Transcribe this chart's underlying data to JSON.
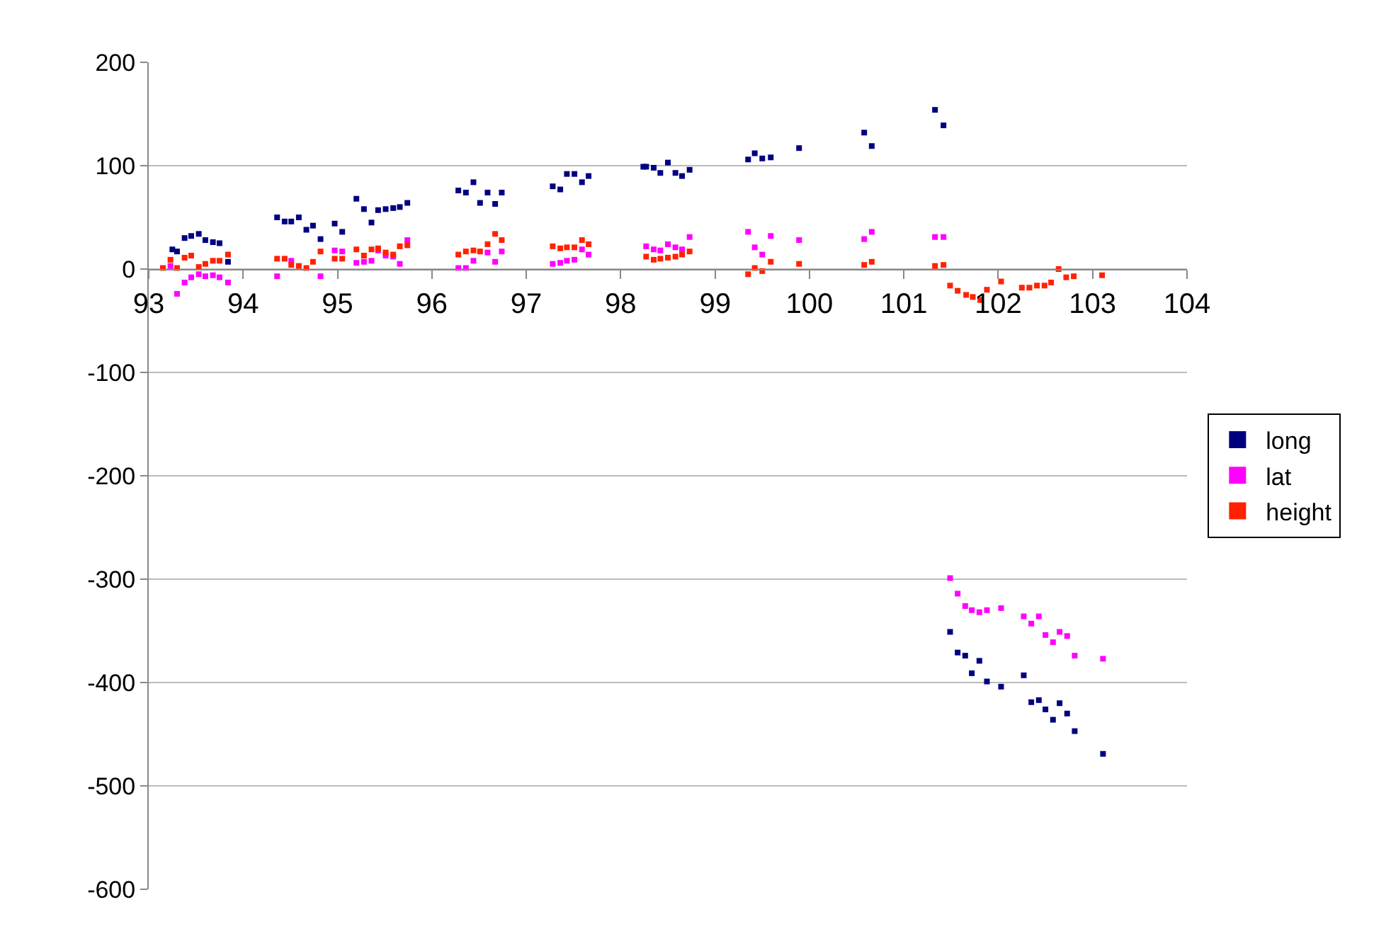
{
  "chart_data": {
    "type": "scatter",
    "xlim": [
      93,
      104
    ],
    "xticks": [
      93,
      94,
      95,
      96,
      97,
      98,
      99,
      100,
      101,
      102,
      103,
      104
    ],
    "ylim": [
      -600,
      200
    ],
    "yticks": [
      -600,
      -500,
      -400,
      -300,
      -200,
      -100,
      0,
      100,
      200
    ],
    "grid": "y",
    "legend": "right",
    "marker": "square",
    "series": [
      {
        "name": "long",
        "color": "#000080",
        "x": [
          93.25,
          93.3,
          93.38,
          93.45,
          93.53,
          93.6,
          93.68,
          93.75,
          93.84,
          94.36,
          94.44,
          94.51,
          94.59,
          94.67,
          94.74,
          94.82,
          94.97,
          95.05,
          95.2,
          95.28,
          95.36,
          95.43,
          95.51,
          95.59,
          95.66,
          95.74,
          96.28,
          96.36,
          96.44,
          96.51,
          96.59,
          96.67,
          96.74,
          97.28,
          97.36,
          97.43,
          97.51,
          97.59,
          97.66,
          98.24,
          98.27,
          98.35,
          98.42,
          98.5,
          98.58,
          98.65,
          98.73,
          99.35,
          99.42,
          99.5,
          99.59,
          99.89,
          100.58,
          100.66,
          101.33,
          101.42,
          101.49,
          101.57,
          101.65,
          101.72,
          101.8,
          101.88,
          102.03,
          102.27,
          102.35,
          102.43,
          102.5,
          102.58,
          102.65,
          102.73,
          102.81,
          103.11
        ],
        "values": [
          19,
          17,
          30,
          32,
          34,
          28,
          26,
          25,
          7,
          50,
          46,
          46,
          50,
          38,
          42,
          29,
          44,
          36,
          68,
          58,
          45,
          57,
          58,
          59,
          60,
          64,
          76,
          74,
          84,
          64,
          74,
          63,
          74,
          80,
          77,
          92,
          92,
          84,
          90,
          99,
          99,
          98,
          93,
          103,
          93,
          90,
          96,
          106,
          112,
          107,
          108,
          117,
          132,
          119,
          154,
          139,
          -351,
          -371,
          -374,
          -391,
          -379,
          -399,
          -404,
          -393,
          -419,
          -417,
          -426,
          -436,
          -420,
          -430,
          -447,
          -469
        ]
      },
      {
        "name": "lat",
        "color": "#ff00ff",
        "x": [
          93.23,
          93.3,
          93.38,
          93.45,
          93.53,
          93.6,
          93.68,
          93.75,
          93.84,
          94.36,
          94.51,
          94.82,
          94.97,
          95.05,
          95.2,
          95.28,
          95.36,
          95.43,
          95.51,
          95.59,
          95.66,
          95.74,
          96.28,
          96.36,
          96.44,
          96.59,
          96.67,
          96.74,
          97.28,
          97.36,
          97.43,
          97.51,
          97.59,
          97.66,
          98.27,
          98.35,
          98.42,
          98.5,
          98.58,
          98.65,
          98.73,
          99.35,
          99.42,
          99.5,
          99.59,
          99.89,
          100.58,
          100.66,
          101.33,
          101.42,
          101.49,
          101.57,
          101.65,
          101.72,
          101.8,
          101.88,
          102.03,
          102.27,
          102.35,
          102.43,
          102.5,
          102.58,
          102.65,
          102.73,
          102.81,
          103.11
        ],
        "values": [
          3,
          -24,
          -13,
          -8,
          -5,
          -7,
          -6,
          -8,
          -13,
          -7,
          8,
          -7,
          18,
          17,
          6,
          7,
          8,
          18,
          13,
          12,
          5,
          28,
          1,
          1,
          8,
          16,
          7,
          17,
          5,
          6,
          8,
          9,
          19,
          14,
          22,
          19,
          18,
          24,
          21,
          19,
          31,
          36,
          21,
          14,
          32,
          28,
          29,
          36,
          31,
          31,
          -299,
          -314,
          -326,
          -330,
          -332,
          -330,
          -328,
          -336,
          -343,
          -336,
          -354,
          -361,
          -351,
          -355,
          -374,
          -377
        ]
      },
      {
        "name": "height",
        "color": "#ff2200",
        "x": [
          93.15,
          93.23,
          93.3,
          93.38,
          93.45,
          93.53,
          93.6,
          93.68,
          93.75,
          93.84,
          94.36,
          94.44,
          94.51,
          94.59,
          94.67,
          94.74,
          94.82,
          94.97,
          95.05,
          95.2,
          95.28,
          95.36,
          95.43,
          95.51,
          95.59,
          95.66,
          95.74,
          96.28,
          96.36,
          96.44,
          96.51,
          96.59,
          96.67,
          96.74,
          97.28,
          97.36,
          97.43,
          97.51,
          97.59,
          97.66,
          98.27,
          98.35,
          98.42,
          98.5,
          98.58,
          98.65,
          98.73,
          99.35,
          99.42,
          99.5,
          99.59,
          99.89,
          100.58,
          100.66,
          101.33,
          101.42,
          101.49,
          101.57,
          101.66,
          101.73,
          101.81,
          101.88,
          102.03,
          102.25,
          102.33,
          102.41,
          102.49,
          102.56,
          102.64,
          102.72,
          102.8,
          103.1
        ],
        "values": [
          1,
          9,
          1,
          11,
          13,
          2,
          5,
          8,
          8,
          14,
          10,
          10,
          4,
          3,
          1,
          7,
          17,
          10,
          10,
          19,
          13,
          19,
          20,
          16,
          14,
          22,
          23,
          14,
          17,
          18,
          17,
          24,
          34,
          28,
          22,
          20,
          21,
          21,
          28,
          24,
          12,
          9,
          10,
          11,
          12,
          14,
          17,
          -5,
          1,
          -2,
          7,
          5,
          4,
          7,
          3,
          4,
          -16,
          -21,
          -25,
          -27,
          -30,
          -20,
          -12,
          -18,
          -18,
          -16,
          -16,
          -13,
          0,
          -8,
          -7,
          -6
        ]
      }
    ]
  }
}
